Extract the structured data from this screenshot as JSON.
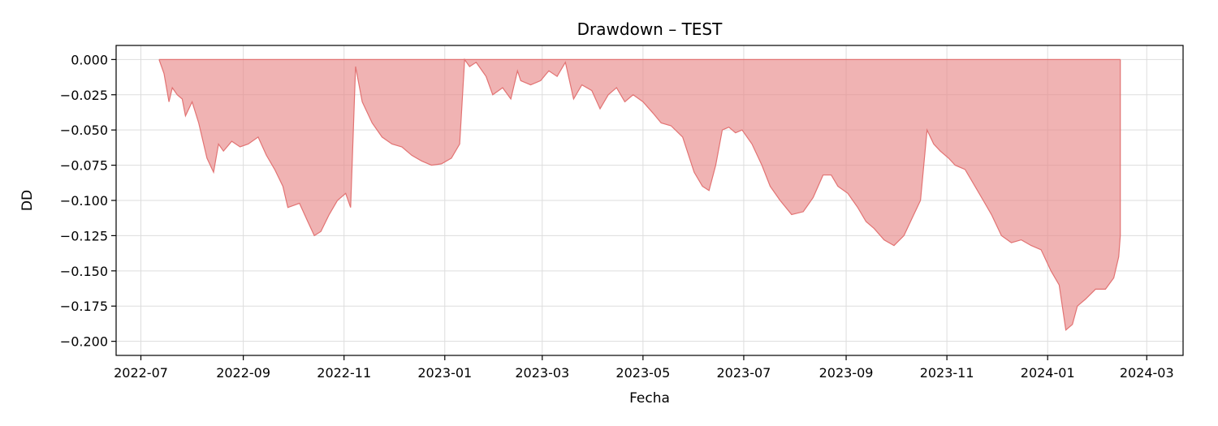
{
  "chart_data": {
    "type": "area",
    "title": "Drawdown – TEST",
    "xlabel": "Fecha",
    "ylabel": "DD",
    "x_ticks": [
      "2022-07",
      "2022-09",
      "2022-11",
      "2023-01",
      "2023-03",
      "2023-05",
      "2023-07",
      "2023-09",
      "2023-11",
      "2024-01",
      "2024-03"
    ],
    "y_ticks": [
      "0.000",
      "−0.025",
      "−0.050",
      "−0.075",
      "−0.100",
      "−0.125",
      "−0.150",
      "−0.175",
      "−0.200"
    ],
    "xlim": [
      "2022-06-16",
      "2024-03-23"
    ],
    "ylim": [
      -0.21,
      0.01
    ],
    "grid": true,
    "colors": {
      "fill": "#e88a8a",
      "line": "#e27373"
    },
    "series": [
      {
        "x": [
          "2022-07-12",
          "2022-07-15",
          "2022-07-18",
          "2022-07-20",
          "2022-07-23",
          "2022-07-26",
          "2022-07-28",
          "2022-08-01",
          "2022-08-05",
          "2022-08-10",
          "2022-08-14",
          "2022-08-17",
          "2022-08-20",
          "2022-08-25",
          "2022-08-30",
          "2022-09-04",
          "2022-09-10",
          "2022-09-15",
          "2022-09-20",
          "2022-09-25",
          "2022-09-28",
          "2022-10-05",
          "2022-10-10",
          "2022-10-14",
          "2022-10-18",
          "2022-10-23",
          "2022-10-28",
          "2022-11-02",
          "2022-11-05",
          "2022-11-08",
          "2022-11-12",
          "2022-11-18",
          "2022-11-24",
          "2022-11-30",
          "2022-12-06",
          "2022-12-12",
          "2022-12-18",
          "2022-12-24",
          "2022-12-30",
          "2023-01-05",
          "2023-01-10",
          "2023-01-13",
          "2023-01-16",
          "2023-01-20",
          "2023-01-26",
          "2023-01-30",
          "2023-02-05",
          "2023-02-10",
          "2023-02-14",
          "2023-02-16",
          "2023-02-22",
          "2023-02-28",
          "2023-03-05",
          "2023-03-10",
          "2023-03-15",
          "2023-03-20",
          "2023-03-25",
          "2023-03-31",
          "2023-04-05",
          "2023-04-10",
          "2023-04-15",
          "2023-04-20",
          "2023-04-25",
          "2023-05-01",
          "2023-05-07",
          "2023-05-12",
          "2023-05-18",
          "2023-05-25",
          "2023-06-01",
          "2023-06-06",
          "2023-06-10",
          "2023-06-14",
          "2023-06-18",
          "2023-06-22",
          "2023-06-26",
          "2023-06-30",
          "2023-07-06",
          "2023-07-12",
          "2023-07-17",
          "2023-07-23",
          "2023-07-30",
          "2023-08-06",
          "2023-08-12",
          "2023-08-18",
          "2023-08-23",
          "2023-08-27",
          "2023-09-02",
          "2023-09-08",
          "2023-09-13",
          "2023-09-18",
          "2023-09-24",
          "2023-09-30",
          "2023-10-06",
          "2023-10-12",
          "2023-10-16",
          "2023-10-20",
          "2023-10-24",
          "2023-10-28",
          "2023-11-02",
          "2023-11-06",
          "2023-11-12",
          "2023-11-18",
          "2023-11-23",
          "2023-11-28",
          "2023-12-04",
          "2023-12-10",
          "2023-12-16",
          "2023-12-22",
          "2023-12-28",
          "2024-01-03",
          "2024-01-08",
          "2024-01-12",
          "2024-01-16",
          "2024-01-19",
          "2024-01-24",
          "2024-01-30",
          "2024-02-05",
          "2024-02-10",
          "2024-02-13",
          "2024-02-14",
          "2024-02-14"
        ],
        "values": [
          0.0,
          -0.01,
          -0.03,
          -0.02,
          -0.025,
          -0.028,
          -0.04,
          -0.03,
          -0.045,
          -0.07,
          -0.08,
          -0.06,
          -0.065,
          -0.058,
          -0.062,
          -0.06,
          -0.055,
          -0.068,
          -0.078,
          -0.09,
          -0.105,
          -0.102,
          -0.115,
          -0.125,
          -0.122,
          -0.11,
          -0.1,
          -0.095,
          -0.105,
          -0.005,
          -0.03,
          -0.045,
          -0.055,
          -0.06,
          -0.062,
          -0.068,
          -0.072,
          -0.075,
          -0.074,
          -0.07,
          -0.06,
          0.0,
          -0.005,
          -0.002,
          -0.012,
          -0.025,
          -0.02,
          -0.028,
          -0.008,
          -0.015,
          -0.018,
          -0.015,
          -0.008,
          -0.012,
          -0.002,
          -0.028,
          -0.018,
          -0.022,
          -0.035,
          -0.025,
          -0.02,
          -0.03,
          -0.025,
          -0.03,
          -0.038,
          -0.045,
          -0.047,
          -0.055,
          -0.08,
          -0.09,
          -0.093,
          -0.075,
          -0.05,
          -0.048,
          -0.052,
          -0.05,
          -0.06,
          -0.075,
          -0.09,
          -0.1,
          -0.11,
          -0.108,
          -0.098,
          -0.082,
          -0.082,
          -0.09,
          -0.095,
          -0.105,
          -0.115,
          -0.12,
          -0.128,
          -0.132,
          -0.125,
          -0.11,
          -0.1,
          -0.05,
          -0.06,
          -0.065,
          -0.07,
          -0.075,
          -0.078,
          -0.09,
          -0.1,
          -0.11,
          -0.125,
          -0.13,
          -0.128,
          -0.132,
          -0.135,
          -0.15,
          -0.16,
          -0.192,
          -0.188,
          -0.175,
          -0.17,
          -0.163,
          -0.163,
          -0.155,
          -0.14,
          -0.125,
          0.0
        ]
      }
    ]
  }
}
